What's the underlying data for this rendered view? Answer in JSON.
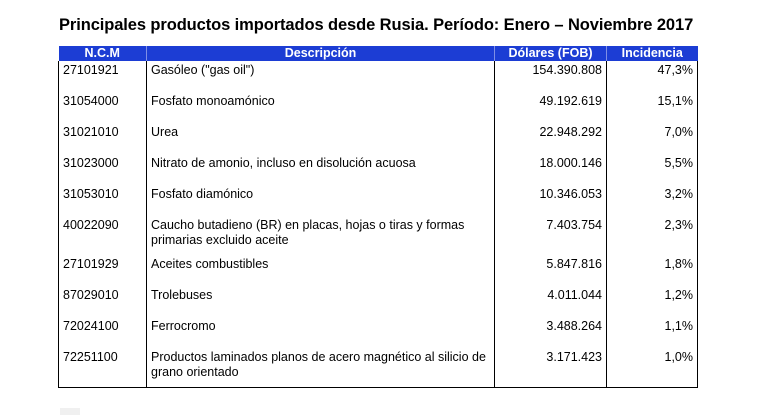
{
  "title": "Principales productos importados desde Rusia. Período: Enero – Noviembre 2017",
  "table": {
    "headers": {
      "ncm": "N.C.M",
      "descripcion": "Descripción",
      "dolares": "Dólares (FOB)",
      "incidencia": "Incidencia"
    },
    "rows": [
      {
        "ncm": "27101921",
        "descripcion": "Gasóleo (\"gas oil\")",
        "dolares": "154.390.808",
        "incidencia": "47,3%"
      },
      {
        "ncm": "31054000",
        "descripcion": "Fosfato monoamónico",
        "dolares": "49.192.619",
        "incidencia": "15,1%"
      },
      {
        "ncm": "31021010",
        "descripcion": "Urea",
        "dolares": "22.948.292",
        "incidencia": "7,0%"
      },
      {
        "ncm": "31023000",
        "descripcion": "Nitrato de amonio, incluso en disolución acuosa",
        "dolares": "18.000.146",
        "incidencia": "5,5%"
      },
      {
        "ncm": "31053010",
        "descripcion": "Fosfato diamónico",
        "dolares": "10.346.053",
        "incidencia": "3,2%"
      },
      {
        "ncm": "40022090",
        "descripcion": "Caucho butadieno (BR) en placas, hojas o tiras y formas primarias excluido aceite",
        "dolares": "7.403.754",
        "incidencia": "2,3%"
      },
      {
        "ncm": "27101929",
        "descripcion": "Aceites combustibles",
        "dolares": "5.847.816",
        "incidencia": "1,8%"
      },
      {
        "ncm": "87029010",
        "descripcion": "Trolebuses",
        "dolares": "4.011.044",
        "incidencia": "1,2%"
      },
      {
        "ncm": "72024100",
        "descripcion": "Ferrocromo",
        "dolares": "3.488.264",
        "incidencia": "1,1%"
      },
      {
        "ncm": "72251100",
        "descripcion": "Productos laminados planos de acero magnético al silicio de grano orientado",
        "dolares": "3.171.423",
        "incidencia": "1,0%"
      }
    ]
  },
  "colors": {
    "header_background": "#1c3dd4",
    "header_text": "#ffffff"
  }
}
